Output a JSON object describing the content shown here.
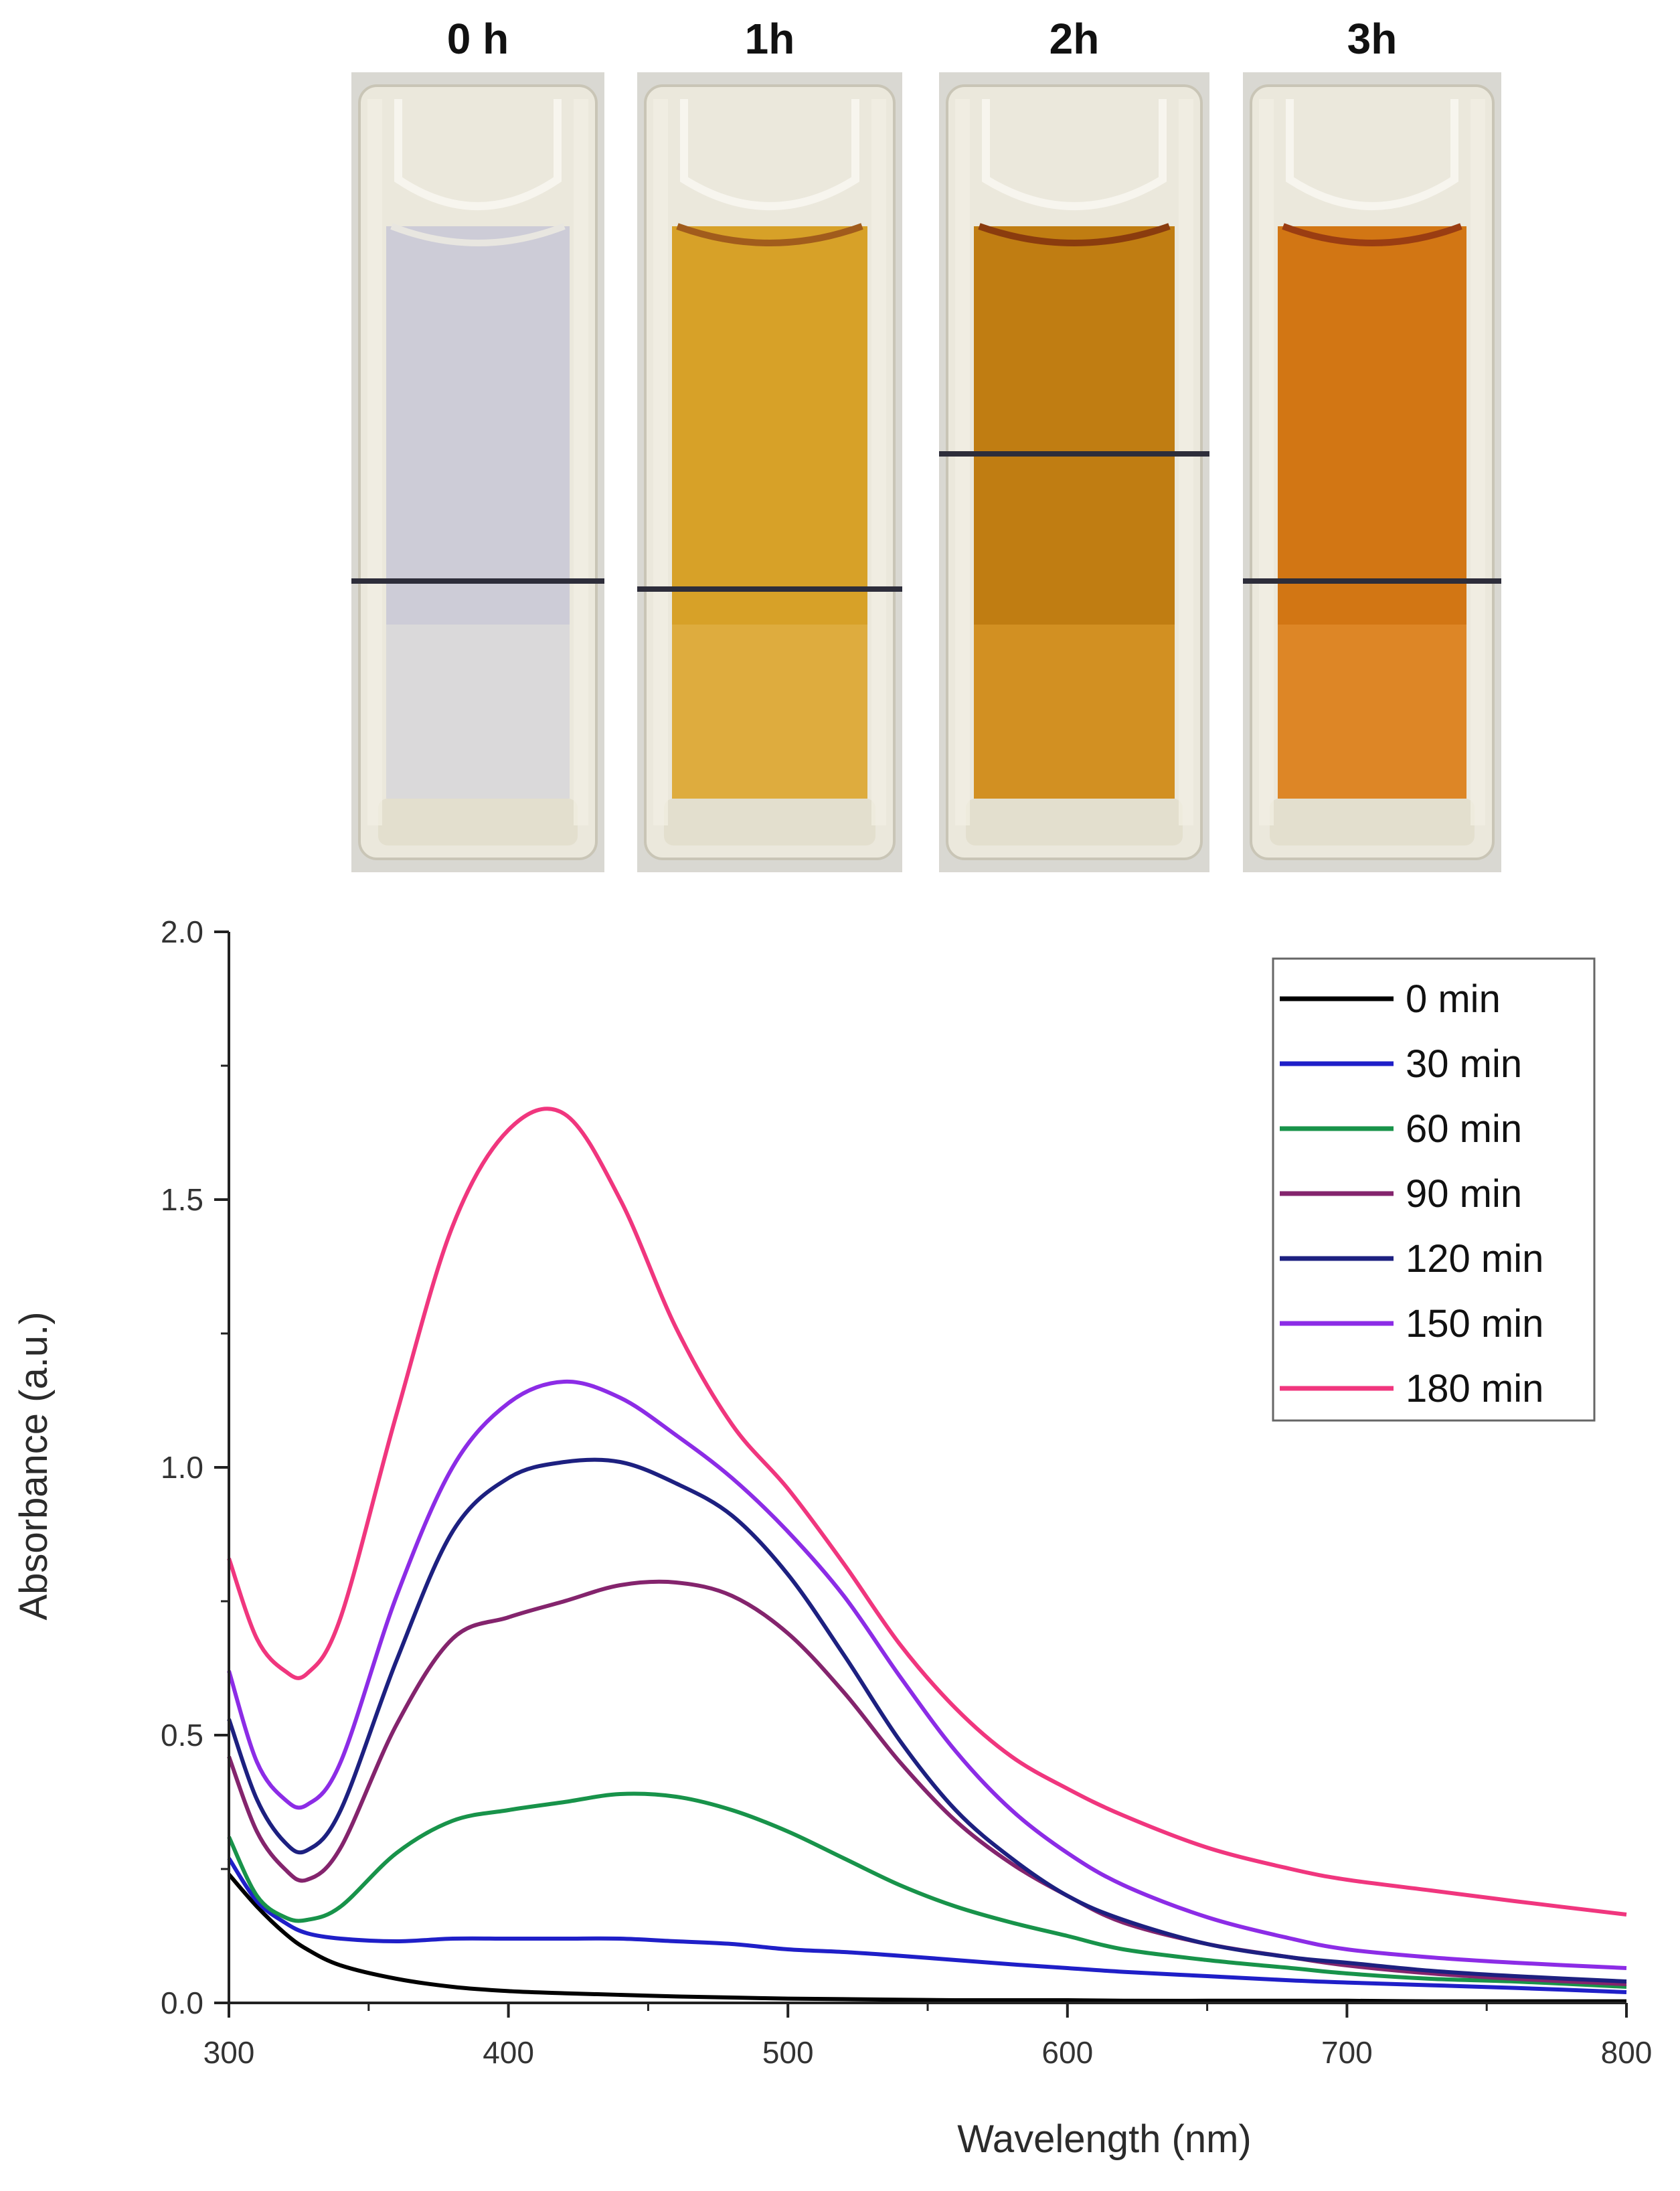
{
  "photo_panel": {
    "cuvettes": [
      {
        "label": "0 h",
        "color": "#cdccd7",
        "bottom_color": "#e6e4dc",
        "meniscus_color": "#e8e6e0"
      },
      {
        "label": "1h",
        "color": "#d7a128",
        "bottom_color": "#e3b650",
        "meniscus_color": "#a15c1c"
      },
      {
        "label": "2h",
        "color": "#c07d12",
        "bottom_color": "#e0a030",
        "meniscus_color": "#8a3c0e"
      },
      {
        "label": "3h",
        "color": "#d27614",
        "bottom_color": "#e69435",
        "meniscus_color": "#9a3d12"
      }
    ]
  },
  "chart_data": {
    "type": "line",
    "title": "",
    "xlabel": "Wavelength (nm)",
    "ylabel": "Absorbance (a.u.)",
    "xlim": [
      300,
      800
    ],
    "ylim": [
      0.0,
      2.0
    ],
    "xticks": [
      300,
      400,
      500,
      600,
      700,
      800
    ],
    "xtick_labels": [
      "300",
      "400",
      "500",
      "600",
      "700",
      "800"
    ],
    "yticks": [
      0.0,
      0.5,
      1.0,
      1.5,
      2.0
    ],
    "ytick_labels": [
      "0.0",
      "0.5",
      "1.0",
      "1.5",
      "2.0"
    ],
    "grid": false,
    "legend_position": "top-right",
    "x": [
      300,
      310,
      320,
      328,
      340,
      360,
      380,
      400,
      420,
      440,
      460,
      480,
      500,
      520,
      540,
      560,
      580,
      600,
      620,
      650,
      680,
      700,
      730,
      760,
      800
    ],
    "series": [
      {
        "name": "0 min",
        "color": "#000000",
        "values": [
          0.24,
          0.18,
          0.13,
          0.1,
          0.07,
          0.045,
          0.03,
          0.022,
          0.018,
          0.015,
          0.012,
          0.01,
          0.008,
          0.007,
          0.006,
          0.005,
          0.005,
          0.005,
          0.004,
          0.004,
          0.004,
          0.004,
          0.003,
          0.003,
          0.003
        ]
      },
      {
        "name": "30 min",
        "color": "#1f1fc8",
        "values": [
          0.27,
          0.19,
          0.15,
          0.13,
          0.12,
          0.115,
          0.12,
          0.12,
          0.12,
          0.12,
          0.115,
          0.11,
          0.1,
          0.095,
          0.088,
          0.08,
          0.072,
          0.065,
          0.058,
          0.05,
          0.042,
          0.038,
          0.033,
          0.028,
          0.02
        ]
      },
      {
        "name": "60 min",
        "color": "#18934a",
        "values": [
          0.31,
          0.2,
          0.16,
          0.155,
          0.18,
          0.28,
          0.34,
          0.36,
          0.375,
          0.39,
          0.385,
          0.36,
          0.32,
          0.27,
          0.22,
          0.18,
          0.15,
          0.125,
          0.1,
          0.08,
          0.065,
          0.055,
          0.045,
          0.04,
          0.03
        ]
      },
      {
        "name": "90 min",
        "color": "#84246d",
        "values": [
          0.46,
          0.32,
          0.25,
          0.23,
          0.29,
          0.52,
          0.68,
          0.72,
          0.75,
          0.78,
          0.785,
          0.76,
          0.69,
          0.58,
          0.45,
          0.34,
          0.26,
          0.2,
          0.15,
          0.11,
          0.085,
          0.07,
          0.055,
          0.045,
          0.035
        ]
      },
      {
        "name": "120 min",
        "color": "#1d2080",
        "values": [
          0.53,
          0.38,
          0.3,
          0.285,
          0.36,
          0.64,
          0.88,
          0.98,
          1.01,
          1.01,
          0.97,
          0.91,
          0.8,
          0.65,
          0.49,
          0.36,
          0.27,
          0.2,
          0.155,
          0.11,
          0.085,
          0.075,
          0.06,
          0.05,
          0.04
        ]
      },
      {
        "name": "150 min",
        "color": "#8c2ce6",
        "values": [
          0.62,
          0.45,
          0.38,
          0.37,
          0.45,
          0.76,
          1.0,
          1.12,
          1.16,
          1.13,
          1.06,
          0.98,
          0.88,
          0.76,
          0.61,
          0.47,
          0.36,
          0.28,
          0.22,
          0.16,
          0.12,
          0.1,
          0.085,
          0.075,
          0.065
        ]
      },
      {
        "name": "180 min",
        "color": "#f0367e",
        "values": [
          0.83,
          0.68,
          0.62,
          0.615,
          0.72,
          1.1,
          1.45,
          1.63,
          1.66,
          1.5,
          1.26,
          1.08,
          0.96,
          0.82,
          0.67,
          0.55,
          0.46,
          0.4,
          0.35,
          0.29,
          0.25,
          0.23,
          0.21,
          0.19,
          0.165
        ]
      }
    ]
  }
}
